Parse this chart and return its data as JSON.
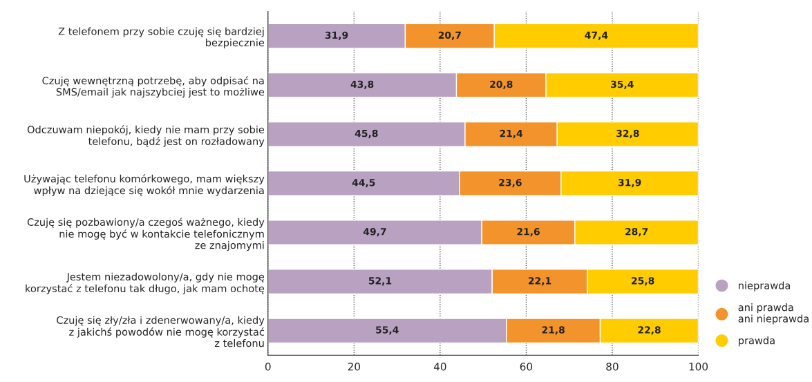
{
  "chart_data": {
    "type": "bar",
    "orientation": "horizontal",
    "stacked": true,
    "grid": "x",
    "legend": "bottom right",
    "marker": "circle",
    "categories": [
      "Z telefonem przy sobie czuję się bardziej\nbezpiecznie",
      "Czuję wewnętrzną potrzebę, aby odpisać na\nSMS/email jak najszybciej jest to możliwe",
      "Odczuwam niepokój, kiedy nie mam przy sobie\ntelefonu, bądź jest on rozładowany",
      "Używając telefonu komórkowego, mam większy\nwpływ na dziejące się wokół mnie wydarzenia",
      "Czuję się pozbawiony/a czegoś ważnego, kiedy\nnie mogę być w kontakcie telefonicznym\nze znajomymi",
      "Jestem niezadowolony/a, gdy nie mogę\nkorzystać z telefonu tak długo, jak mam ochotę",
      "Czuję się zły/zła i zdenerwowany/a, kiedy\nz jakichś powodów nie mogę korzystać\nz telefonu"
    ],
    "series": [
      {
        "name": "nieprawda",
        "color": "#b9a1c1",
        "values": [
          31.9,
          43.8,
          45.8,
          44.5,
          49.7,
          52.1,
          55.4
        ],
        "value_labels": [
          "31,9",
          "43,8",
          "45,8",
          "44,5",
          "49,7",
          "52,1",
          "55,4"
        ]
      },
      {
        "name": "ani prawda\nani nieprawda",
        "color": "#f3932b",
        "values": [
          20.7,
          20.8,
          21.4,
          23.6,
          21.6,
          22.1,
          21.8
        ],
        "value_labels": [
          "20,7",
          "20,8",
          "21,4",
          "23,6",
          "21,6",
          "22,1",
          "21,8"
        ]
      },
      {
        "name": "prawda",
        "color": "#ffcc00",
        "values": [
          47.4,
          35.4,
          32.8,
          31.9,
          28.7,
          25.8,
          22.8
        ],
        "value_labels": [
          "47,4",
          "35,4",
          "32,8",
          "31,9",
          "28,7",
          "25,8",
          "22,8"
        ]
      }
    ],
    "xlim": [
      0,
      100
    ],
    "xticks": [
      0,
      20,
      40,
      60,
      80,
      100
    ]
  }
}
